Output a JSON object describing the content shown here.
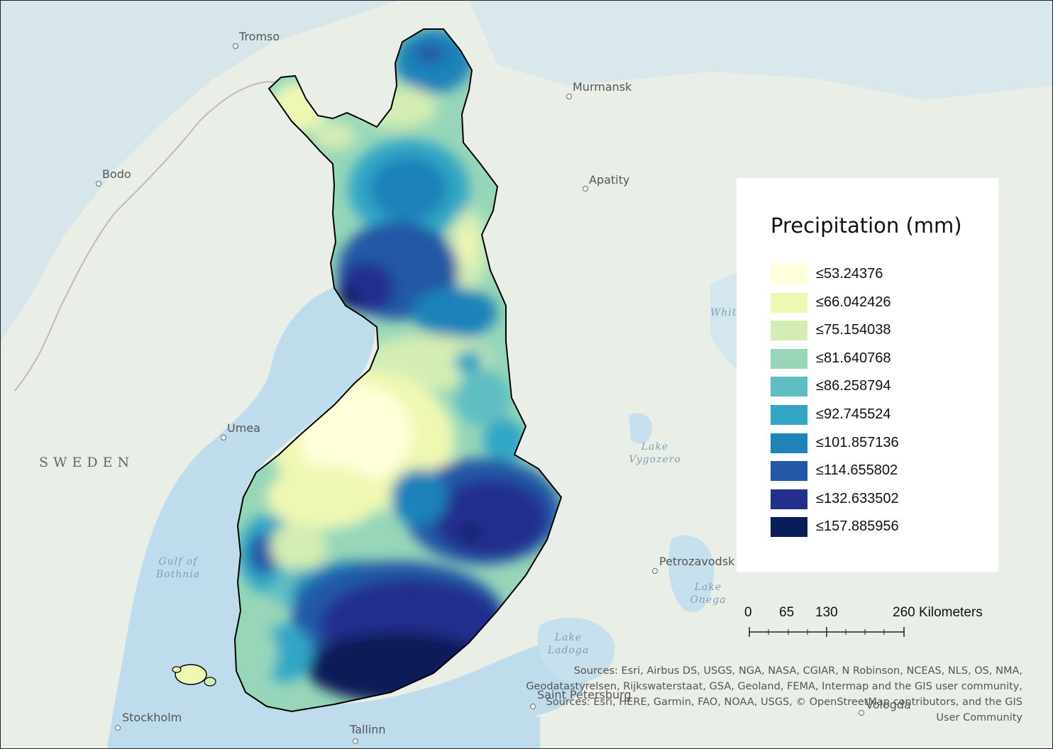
{
  "map": {
    "places": [
      {
        "name": "Tromso"
      },
      {
        "name": "Murmansk"
      },
      {
        "name": "Bodo"
      },
      {
        "name": "Apatity"
      },
      {
        "name": "Umea"
      },
      {
        "name": "Petrozavodsk"
      },
      {
        "name": "Stockholm"
      },
      {
        "name": "Tallinn"
      },
      {
        "name": "Saint Petersburg"
      },
      {
        "name": "Vologda"
      }
    ],
    "countries": [
      "SWEDEN"
    ],
    "water_bodies": [
      {
        "line1": "Gulf of",
        "line2": "Bothnia"
      },
      {
        "line1": "Lake",
        "line2": "Vygozero"
      },
      {
        "line1": "Lake",
        "line2": "Onega"
      },
      {
        "line1": "Lake",
        "line2": "Ladoga"
      },
      {
        "line1": "Whit",
        "line2": ""
      }
    ],
    "colors": {
      "water": "#bfdcec",
      "land": "#e9eee6",
      "outline": "#000000"
    }
  },
  "legend": {
    "title": "Precipitation (mm)",
    "classes": [
      {
        "label": "≤53.24376",
        "color": "#ffffd9"
      },
      {
        "label": "≤66.042426",
        "color": "#eff8b3"
      },
      {
        "label": "≤75.154038",
        "color": "#d3edb4"
      },
      {
        "label": "≤81.640768",
        "color": "#97d6b9"
      },
      {
        "label": "≤86.258794",
        "color": "#5fbec2"
      },
      {
        "label": "≤92.745524",
        "color": "#33a6c6"
      },
      {
        "label": "≤101.857136",
        "color": "#1f82b9"
      },
      {
        "label": "≤114.655802",
        "color": "#2258a6"
      },
      {
        "label": "≤132.633502",
        "color": "#232f8d"
      },
      {
        "label": "≤157.885956",
        "color": "#081d58"
      }
    ]
  },
  "scale": {
    "ticks": [
      "0",
      "65",
      "130",
      "260 Kilometers"
    ]
  },
  "attribution": {
    "line1": "Sources: Esri, Airbus DS, USGS, NGA, NASA, CGIAR, N Robinson, NCEAS, NLS, OS, NMA,",
    "line2": "Geodatastyrelsen, Rijkswaterstaat, GSA, Geoland, FEMA, Intermap and the GIS user community,",
    "line3": "Sources: Esri, HERE, Garmin, FAO, NOAA, USGS, © OpenStreetMap contributors, and the GIS",
    "line4": "User Community"
  }
}
